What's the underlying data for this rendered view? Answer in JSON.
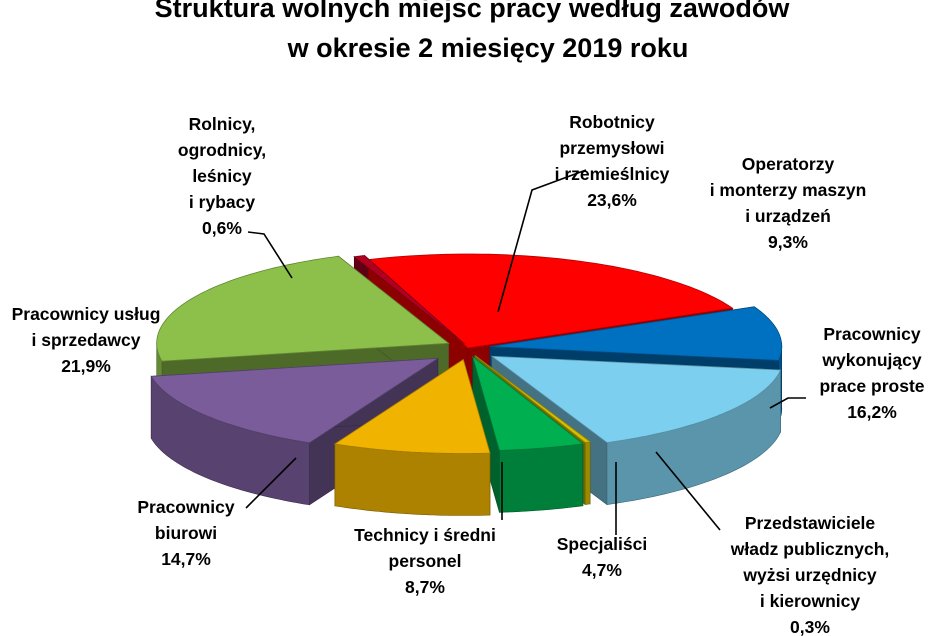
{
  "chart_data": {
    "type": "pie",
    "title": "Struktura wolnych miejsc pracy według zawodów",
    "subtitle": "w okresie 2 miesięcy 2019 roku",
    "slices": [
      {
        "name": "Robotnicy przemysłowi i rzemieślnicy",
        "value": 23.6,
        "value_label": "23,6%",
        "color": "#ff0000",
        "label_lines": [
          "Robotnicy",
          "przemysłowi",
          "i rzemieślnicy"
        ]
      },
      {
        "name": "Operatorzy i monterzy maszyn i urządzeń",
        "value": 9.3,
        "value_label": "9,3%",
        "color": "#0070c0",
        "label_lines": [
          "Operatorzy",
          "i monterzy maszyn",
          "i urządzeń"
        ]
      },
      {
        "name": "Pracownicy wykonujący prace proste",
        "value": 16.2,
        "value_label": "16,2%",
        "color": "#7dcfef",
        "label_lines": [
          "Pracownicy",
          "wykonujący",
          "prace proste"
        ]
      },
      {
        "name": "Przedstawiciele władz publicznych, wyżsi urzędnicy i kierownicy",
        "value": 0.3,
        "value_label": "0,3%",
        "color": "#d4c000",
        "label_lines": [
          "Przedstawiciele",
          "władz publicznych,",
          "wyżsi urzędnicy",
          "i kierownicy"
        ]
      },
      {
        "name": "Specjaliści",
        "value": 4.7,
        "value_label": "4,7%",
        "color": "#00b050",
        "label_lines": [
          "Specjaliści"
        ]
      },
      {
        "name": "Technicy i średni personel",
        "value": 8.7,
        "value_label": "8,7%",
        "color": "#f0b400",
        "label_lines": [
          "Technicy i średni",
          "personel"
        ]
      },
      {
        "name": "Pracownicy biurowi",
        "value": 14.7,
        "value_label": "14,7%",
        "color": "#7a5c9a",
        "label_lines": [
          "Pracownicy",
          "biurowi"
        ]
      },
      {
        "name": "Pracownicy usług i sprzedawcy",
        "value": 21.9,
        "value_label": "21,9%",
        "color": "#8cc04a",
        "label_lines": [
          "Pracownicy usług",
          "i sprzedawcy"
        ]
      },
      {
        "name": "Rolnicy, ogrodnicy, leśnicy i rybacy",
        "value": 0.6,
        "value_label": "0,6%",
        "color": "#b00020",
        "label_lines": [
          "Rolnicy,",
          "ogrodnicy,",
          "leśnicy",
          "i rybacy"
        ]
      }
    ]
  }
}
